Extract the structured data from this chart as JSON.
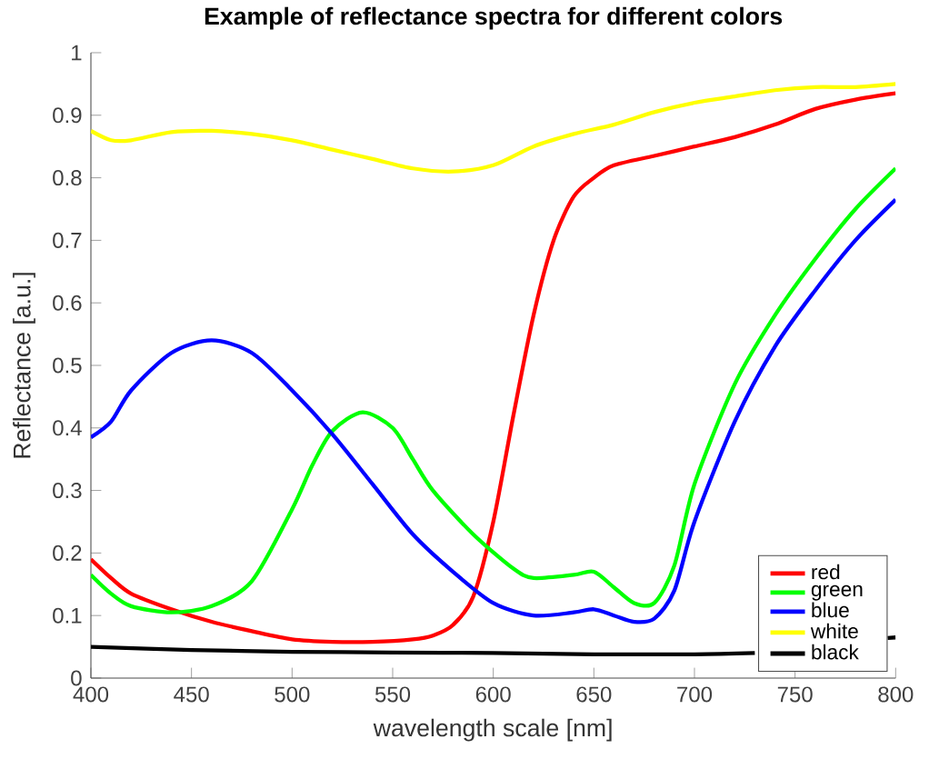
{
  "chart_data": {
    "type": "line",
    "title": "Example of reflectance spectra for different colors",
    "xlabel": "wavelength scale [nm]",
    "ylabel": "Reflectance [a.u.]",
    "xlim": [
      400,
      800
    ],
    "ylim": [
      0,
      1
    ],
    "xticks": [
      400,
      450,
      500,
      550,
      600,
      650,
      700,
      750,
      800
    ],
    "yticks": [
      0,
      0.1,
      0.2,
      0.3,
      0.4,
      0.5,
      0.6,
      0.7,
      0.8,
      0.9,
      1
    ],
    "legend": "bottom right",
    "grid": false,
    "marker": "none",
    "line_style": "solid",
    "series": [
      {
        "name": "red",
        "color": "#ff0000",
        "x": [
          400,
          410,
          420,
          440,
          460,
          480,
          500,
          520,
          540,
          560,
          570,
          580,
          590,
          600,
          610,
          620,
          630,
          640,
          650,
          660,
          680,
          700,
          720,
          740,
          760,
          780,
          800
        ],
        "values": [
          0.19,
          0.16,
          0.135,
          0.11,
          0.09,
          0.075,
          0.062,
          0.058,
          0.058,
          0.062,
          0.068,
          0.085,
          0.13,
          0.25,
          0.42,
          0.58,
          0.7,
          0.77,
          0.8,
          0.82,
          0.835,
          0.85,
          0.865,
          0.885,
          0.91,
          0.925,
          0.935
        ]
      },
      {
        "name": "green",
        "color": "#00ff00",
        "x": [
          400,
          410,
          420,
          440,
          460,
          480,
          500,
          510,
          520,
          535,
          550,
          560,
          570,
          590,
          610,
          620,
          640,
          650,
          660,
          670,
          680,
          690,
          700,
          720,
          740,
          760,
          780,
          800
        ],
        "values": [
          0.165,
          0.135,
          0.115,
          0.105,
          0.115,
          0.155,
          0.27,
          0.34,
          0.395,
          0.425,
          0.4,
          0.35,
          0.3,
          0.23,
          0.175,
          0.16,
          0.165,
          0.17,
          0.145,
          0.12,
          0.12,
          0.18,
          0.31,
          0.47,
          0.58,
          0.67,
          0.75,
          0.815
        ]
      },
      {
        "name": "blue",
        "color": "#0000ff",
        "x": [
          400,
          410,
          420,
          440,
          460,
          480,
          500,
          520,
          540,
          560,
          580,
          600,
          620,
          640,
          650,
          660,
          670,
          680,
          690,
          700,
          720,
          740,
          760,
          780,
          800
        ],
        "values": [
          0.385,
          0.41,
          0.46,
          0.52,
          0.54,
          0.52,
          0.46,
          0.39,
          0.31,
          0.23,
          0.17,
          0.12,
          0.1,
          0.105,
          0.11,
          0.1,
          0.09,
          0.095,
          0.14,
          0.25,
          0.41,
          0.53,
          0.62,
          0.7,
          0.765
        ]
      },
      {
        "name": "white",
        "color": "#ffff00",
        "x": [
          400,
          410,
          420,
          440,
          460,
          480,
          500,
          520,
          540,
          560,
          580,
          600,
          620,
          640,
          660,
          680,
          700,
          720,
          740,
          760,
          780,
          800
        ],
        "values": [
          0.875,
          0.86,
          0.86,
          0.873,
          0.875,
          0.87,
          0.86,
          0.845,
          0.83,
          0.815,
          0.81,
          0.82,
          0.85,
          0.87,
          0.885,
          0.905,
          0.92,
          0.93,
          0.94,
          0.945,
          0.945,
          0.95
        ]
      },
      {
        "name": "black",
        "color": "#000000",
        "x": [
          400,
          450,
          500,
          550,
          600,
          650,
          700,
          730,
          760,
          796,
          800
        ],
        "values": [
          0.05,
          0.045,
          0.042,
          0.041,
          0.04,
          0.038,
          0.038,
          0.04,
          null,
          0.064,
          0.065
        ]
      }
    ]
  }
}
